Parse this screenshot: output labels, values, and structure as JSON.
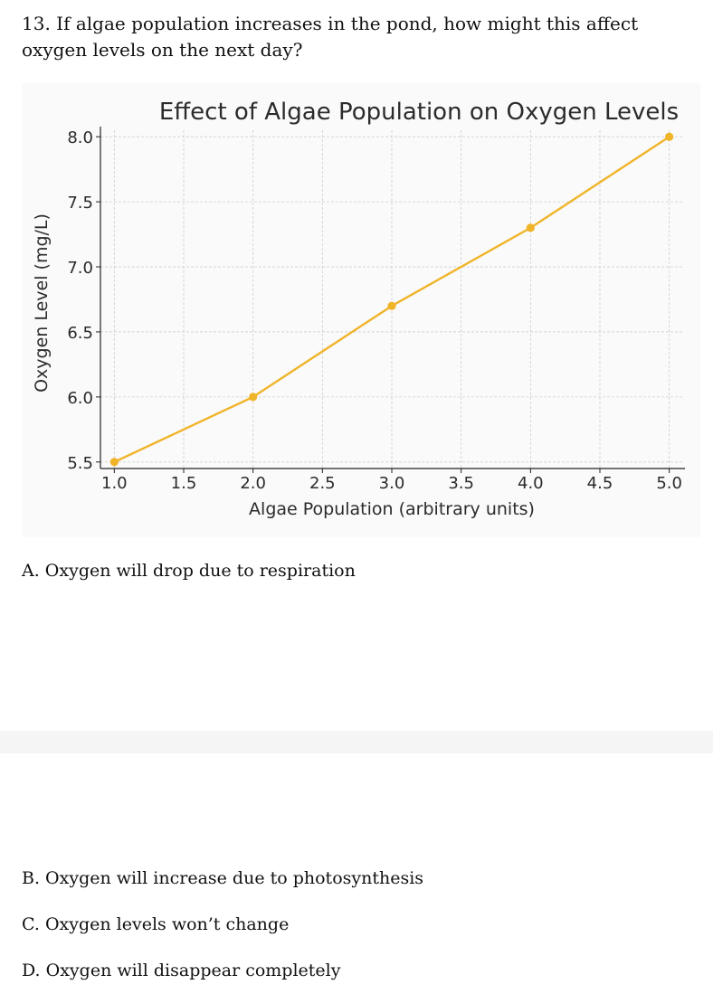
{
  "question": {
    "text": "13. If algae population increases in the pond, how might this affect oxygen levels on the next day?"
  },
  "options": [
    {
      "label": "A. Oxygen will drop due to respiration"
    },
    {
      "label": "B. Oxygen will increase due to photosynthesis"
    },
    {
      "label": "C. Oxygen levels won’t change"
    },
    {
      "label": "D. Oxygen will disappear completely"
    }
  ],
  "chart_data": {
    "type": "line",
    "title": "Effect of Algae Population on Oxygen Levels",
    "xlabel": "Algae Population (arbitrary units)",
    "ylabel": "Oxygen Level (mg/L)",
    "x": [
      1.0,
      2.0,
      3.0,
      4.0,
      5.0
    ],
    "y": [
      5.5,
      6.0,
      6.7,
      7.3,
      8.0
    ],
    "xlim": [
      0.9,
      5.1
    ],
    "ylim": [
      5.45,
      8.05
    ],
    "xticks": [
      "1.0",
      "1.5",
      "2.0",
      "2.5",
      "3.0",
      "3.5",
      "4.0",
      "4.5",
      "5.0"
    ],
    "yticks": [
      "5.5",
      "6.0",
      "6.5",
      "7.0",
      "7.5",
      "8.0"
    ],
    "grid": true,
    "line_color": "#f0b429",
    "marker": "circle"
  }
}
